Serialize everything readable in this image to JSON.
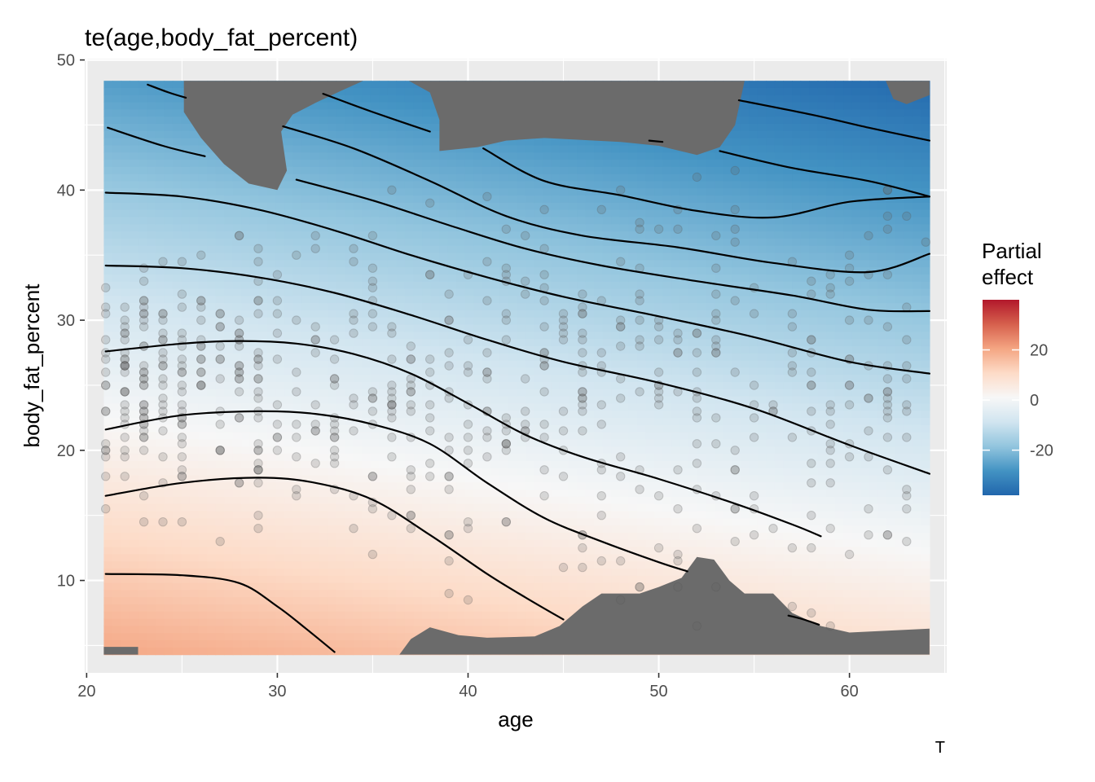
{
  "chart_data": {
    "type": "heatmap",
    "title": "te(age,body_fat_percent)",
    "xlabel": "age",
    "ylabel": "body_fat_percent",
    "xlim": [
      19.9,
      65.1
    ],
    "ylim": [
      2.9,
      50.1
    ],
    "x_ticks": [
      20,
      30,
      40,
      50,
      60
    ],
    "y_ticks": [
      10,
      20,
      30,
      40,
      50
    ],
    "grid": true,
    "legend": {
      "title_lines": [
        "Partial",
        "effect"
      ],
      "position": "right",
      "ticks": [
        20,
        0,
        -20
      ],
      "range": [
        -38,
        40
      ],
      "colors": [
        "#2166ac",
        "#4393c3",
        "#92c5de",
        "#d1e5f0",
        "#f7f7f7",
        "#fddbc7",
        "#f4a582",
        "#d6604d",
        "#b2182b"
      ]
    },
    "caption": "T",
    "surface_domain": {
      "x": [
        20.9,
        64.2
      ],
      "y": [
        4.3,
        48.4
      ]
    },
    "excluded_color": "#6b6b6b",
    "contour_lines": [
      {
        "points": [
          [
            21,
            10.5
          ],
          [
            25,
            10.4
          ],
          [
            28,
            9.8
          ],
          [
            30,
            8
          ],
          [
            31.5,
            6.3
          ],
          [
            33,
            4.5
          ]
        ]
      },
      {
        "points": [
          [
            21,
            16.5
          ],
          [
            25,
            17.5
          ],
          [
            29,
            17.9
          ],
          [
            32,
            17.5
          ],
          [
            35,
            16.2
          ],
          [
            38,
            13.5
          ],
          [
            41,
            10.5
          ],
          [
            43,
            8.7
          ],
          [
            45,
            7
          ]
        ]
      },
      {
        "points": [
          [
            21,
            21.6
          ],
          [
            25,
            22.7
          ],
          [
            29,
            23
          ],
          [
            32,
            22.8
          ],
          [
            35,
            22
          ],
          [
            38,
            20.5
          ],
          [
            41,
            17.5
          ],
          [
            44,
            14.8
          ],
          [
            47,
            13
          ],
          [
            50,
            11.4
          ],
          [
            51.5,
            10.7
          ]
        ]
      },
      {
        "points": [
          [
            21,
            27.6
          ],
          [
            25,
            28.2
          ],
          [
            28,
            28.4
          ],
          [
            31,
            28.2
          ],
          [
            34,
            27.4
          ],
          [
            37,
            25.9
          ],
          [
            40,
            23.6
          ],
          [
            43,
            21.2
          ],
          [
            46,
            19.5
          ],
          [
            50,
            17.8
          ],
          [
            54,
            15.9
          ],
          [
            57,
            14.3
          ],
          [
            58.5,
            13.4
          ]
        ]
      },
      {
        "points": [
          [
            21,
            34.2
          ],
          [
            25,
            34
          ],
          [
            29,
            33.3
          ],
          [
            33,
            32.1
          ],
          [
            37,
            30.4
          ],
          [
            41,
            28.5
          ],
          [
            45,
            26.8
          ],
          [
            50,
            25.2
          ],
          [
            55,
            23.2
          ],
          [
            60,
            20.4
          ],
          [
            64.2,
            18.2
          ]
        ]
      },
      {
        "points": [
          [
            21,
            39.8
          ],
          [
            25,
            39.5
          ],
          [
            29,
            38.5
          ],
          [
            33,
            36.9
          ],
          [
            37,
            35
          ],
          [
            41,
            33.3
          ],
          [
            45,
            31.8
          ],
          [
            50,
            30.3
          ],
          [
            55,
            28.7
          ],
          [
            60,
            26.8
          ],
          [
            64.2,
            25.9
          ]
        ]
      },
      {
        "points": [
          [
            31,
            40.8
          ],
          [
            35,
            39.2
          ],
          [
            39,
            37.3
          ],
          [
            43,
            35.5
          ],
          [
            47,
            34.2
          ],
          [
            52,
            33
          ],
          [
            57,
            31.9
          ],
          [
            61,
            30.8
          ],
          [
            64.2,
            30.7
          ]
        ]
      },
      {
        "points": [
          [
            30.3,
            44.9
          ],
          [
            34,
            43.2
          ],
          [
            38,
            40.7
          ],
          [
            42,
            38
          ],
          [
            46,
            36.5
          ],
          [
            51,
            35.6
          ],
          [
            56,
            34.4
          ],
          [
            61,
            33.7
          ],
          [
            64.2,
            35.1
          ]
        ]
      },
      {
        "points": [
          [
            40.8,
            43.2
          ],
          [
            44,
            40.7
          ],
          [
            48,
            39.6
          ],
          [
            52,
            38.4
          ],
          [
            56,
            37.9
          ],
          [
            60,
            39.1
          ],
          [
            64.2,
            39.5
          ]
        ]
      },
      {
        "points": [
          [
            53.2,
            43
          ],
          [
            57,
            41.7
          ],
          [
            61,
            40.7
          ],
          [
            64.2,
            39.5
          ]
        ]
      },
      {
        "points": [
          [
            54.2,
            46.9
          ],
          [
            58,
            45.8
          ],
          [
            61,
            44.8
          ],
          [
            64.2,
            43.8
          ]
        ]
      },
      {
        "points": [
          [
            21.1,
            44.8
          ],
          [
            24,
            43.4
          ],
          [
            26.2,
            42.6
          ]
        ]
      },
      {
        "points": [
          [
            23.2,
            48.1
          ],
          [
            24.3,
            47.5
          ],
          [
            25.2,
            47.1
          ]
        ]
      },
      {
        "points": [
          [
            32.4,
            47.4
          ],
          [
            35,
            46
          ],
          [
            38,
            44.5
          ]
        ]
      },
      {
        "points": [
          [
            49.5,
            43.8
          ],
          [
            50.2,
            43.7
          ]
        ]
      },
      {
        "points": [
          [
            56.8,
            7.3
          ],
          [
            57.6,
            7
          ],
          [
            58.4,
            6.6
          ]
        ]
      }
    ]
  }
}
